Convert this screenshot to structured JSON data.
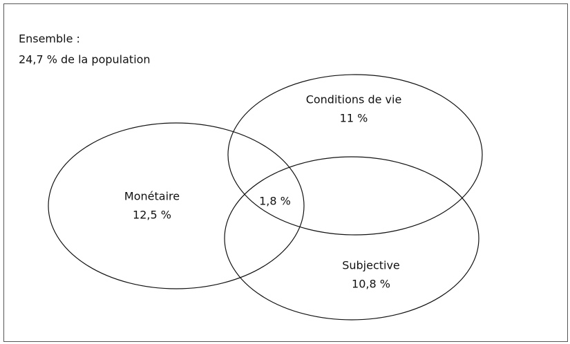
{
  "header": {
    "title": "Ensemble :",
    "subtitle": "24,7 % de la population"
  },
  "sets": [
    {
      "label": "Monétaire",
      "value": "12,5 %"
    },
    {
      "label": "Conditions de vie",
      "value": "11 %"
    },
    {
      "label": "Subjective",
      "value": "10,8 %"
    }
  ],
  "intersection": {
    "value": "1,8 %"
  }
}
